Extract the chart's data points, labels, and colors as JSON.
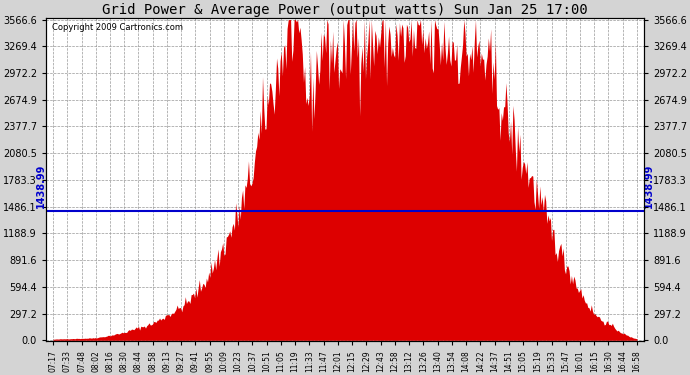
{
  "title": "Grid Power & Average Power (output watts) Sun Jan 25 17:00",
  "copyright": "Copyright 2009 Cartronics.com",
  "avg_power": 1438.99,
  "ymax": 3566.6,
  "yticks": [
    0.0,
    297.2,
    594.4,
    891.6,
    1188.9,
    1486.1,
    1783.3,
    2080.5,
    2377.7,
    2674.9,
    2972.2,
    3269.4,
    3566.6
  ],
  "bar_color": "#dd0000",
  "avg_line_color": "#0000cc",
  "background_color": "#d4d4d4",
  "plot_bg_color": "#ffffff",
  "grid_color": "#999999",
  "title_fontsize": 10,
  "x_labels": [
    "07:17",
    "07:33",
    "07:48",
    "08:02",
    "08:16",
    "08:30",
    "08:44",
    "08:58",
    "09:13",
    "09:27",
    "09:41",
    "09:55",
    "10:09",
    "10:23",
    "10:37",
    "10:51",
    "11:05",
    "11:19",
    "11:33",
    "11:47",
    "12:01",
    "12:15",
    "12:29",
    "12:43",
    "12:58",
    "13:12",
    "13:26",
    "13:40",
    "13:54",
    "14:08",
    "14:22",
    "14:37",
    "14:51",
    "15:05",
    "15:19",
    "15:33",
    "15:47",
    "16:01",
    "16:15",
    "16:30",
    "16:44",
    "16:58"
  ],
  "values": [
    12,
    18,
    22,
    30,
    55,
    90,
    140,
    190,
    280,
    370,
    520,
    750,
    1050,
    1400,
    1900,
    2600,
    3100,
    3450,
    2700,
    3350,
    3100,
    3400,
    3280,
    3370,
    3300,
    3320,
    3280,
    3300,
    3260,
    3200,
    3150,
    2850,
    2400,
    2000,
    1600,
    1200,
    850,
    550,
    300,
    180,
    80,
    20
  ],
  "dense_n": 500
}
